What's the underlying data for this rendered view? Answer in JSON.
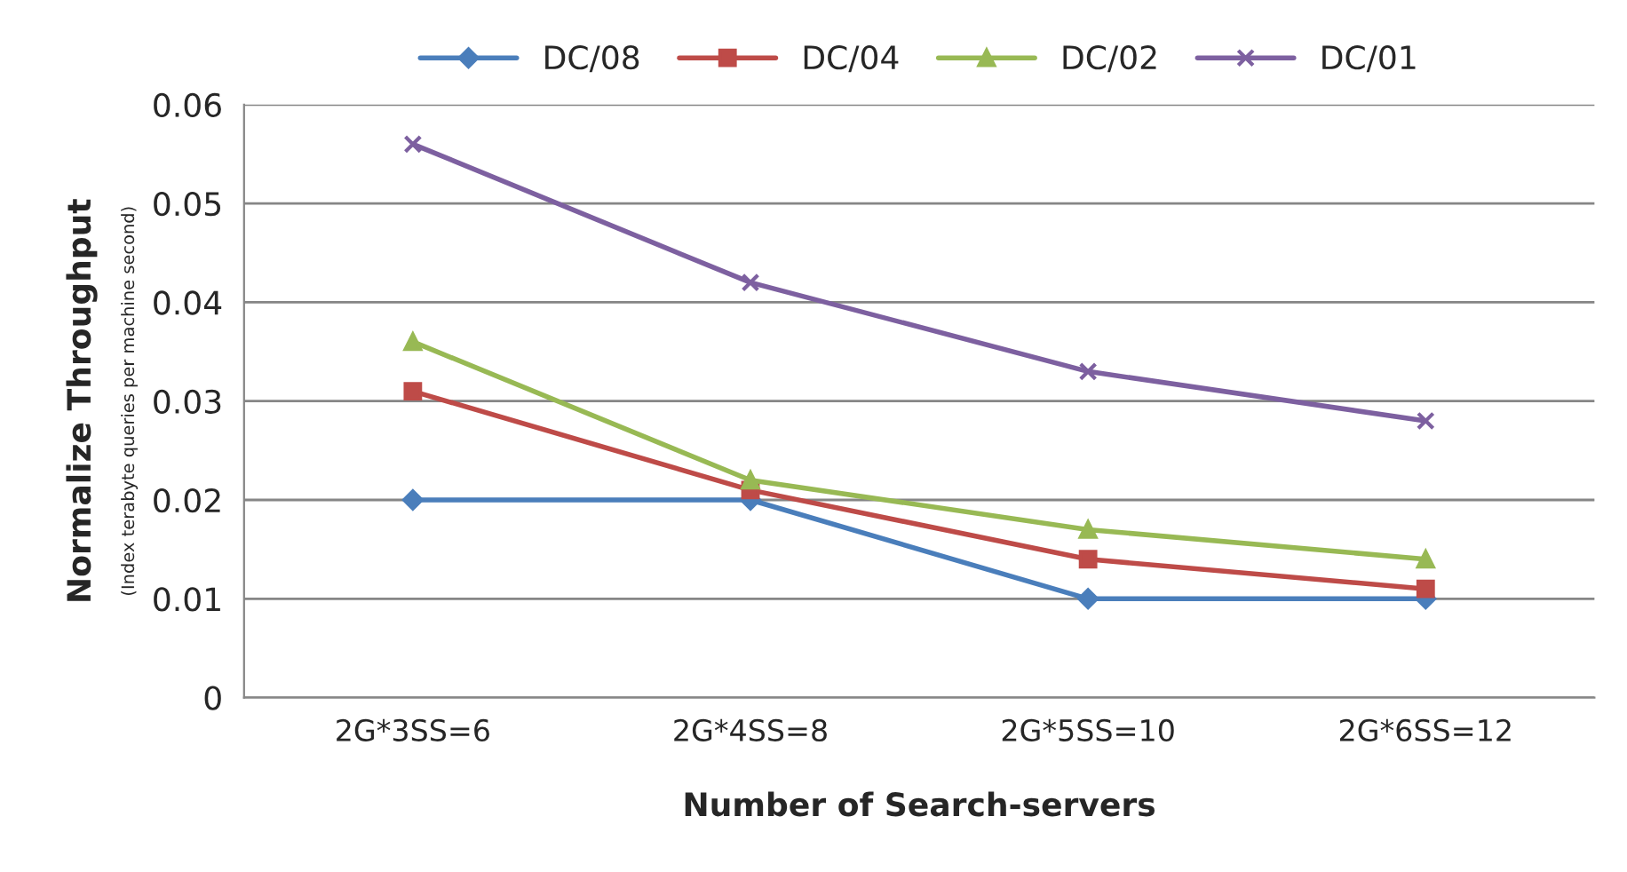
{
  "chart_data": {
    "type": "line",
    "xlabel": "Number of Search-servers",
    "ylabel": "Normalize Throughput\n(Index terabyte queries per machine second)",
    "categories": [
      "2G*3SS=6",
      "2G*4SS=8",
      "2G*5SS=10",
      "2G*6SS=12"
    ],
    "series": [
      {
        "name": "DC/08",
        "color": "#4a7ebb",
        "marker": "diamond",
        "values": [
          0.02,
          0.02,
          0.01,
          0.01
        ]
      },
      {
        "name": "DC/04",
        "color": "#be4b48",
        "marker": "square",
        "values": [
          0.031,
          0.021,
          0.014,
          0.011
        ]
      },
      {
        "name": "DC/02",
        "color": "#98b954",
        "marker": "triangle",
        "values": [
          0.036,
          0.022,
          0.017,
          0.014
        ]
      },
      {
        "name": "DC/01",
        "color": "#7d60a0",
        "marker": "cross",
        "values": [
          0.056,
          0.042,
          0.033,
          0.028
        ]
      }
    ],
    "ylim": [
      0,
      0.06
    ],
    "yticks": [
      0,
      0.01,
      0.02,
      0.03,
      0.04,
      0.05,
      0.06
    ],
    "grid": "y",
    "legend": "top"
  }
}
